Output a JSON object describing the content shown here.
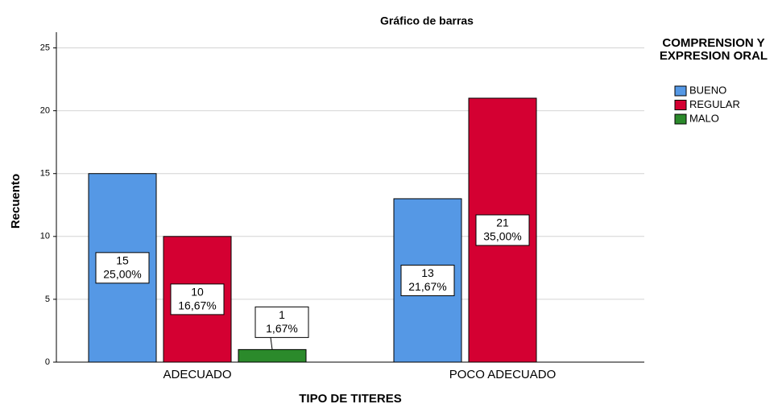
{
  "chart_data": {
    "type": "bar",
    "title": "Gráfico de barras",
    "x_label": "TIPO DE TITERES",
    "y_label": "Recuento",
    "categories": [
      "ADECUADO",
      "POCO ADECUADO"
    ],
    "series": [
      {
        "name": "BUENO",
        "color": "#5598e5",
        "values": [
          15,
          13
        ],
        "percent_labels": [
          "25,00%",
          "21,67%"
        ]
      },
      {
        "name": "REGULAR",
        "color": "#d40032",
        "values": [
          10,
          21
        ],
        "percent_labels": [
          "16,67%",
          "35,00%"
        ]
      },
      {
        "name": "MALO",
        "color": "#2b8a2b",
        "values": [
          1,
          null
        ],
        "percent_labels": [
          "1,67%",
          null
        ]
      }
    ],
    "legend_title": "COMPRENSION Y EXPRESION ORAL",
    "ylim": [
      0,
      26.25
    ],
    "yticks": [
      0,
      5,
      10,
      15,
      20,
      25
    ],
    "grid": true,
    "legend": "right"
  }
}
